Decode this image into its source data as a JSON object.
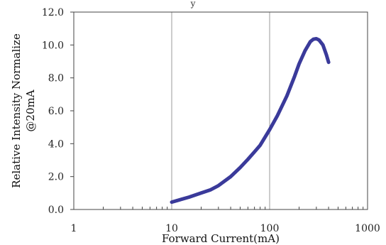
{
  "chart_data": {
    "type": "line",
    "title": "",
    "top_fragment": "y",
    "xlabel": "Forward Current(mA)",
    "ylabel_lines": [
      "Relative Intensity Normalize",
      "@20mA"
    ],
    "x_scale": "log",
    "xlim": [
      1,
      1000
    ],
    "ylim": [
      0,
      12
    ],
    "x_ticks": [
      {
        "value": 1,
        "label": "1"
      },
      {
        "value": 10,
        "label": "10"
      },
      {
        "value": 100,
        "label": "100"
      },
      {
        "value": 1000,
        "label": "1000"
      }
    ],
    "y_ticks": [
      {
        "value": 0,
        "label": "0.0"
      },
      {
        "value": 2,
        "label": "2.0"
      },
      {
        "value": 4,
        "label": "4.0"
      },
      {
        "value": 6,
        "label": "6.0"
      },
      {
        "value": 8,
        "label": "8.0"
      },
      {
        "value": 10,
        "label": "10.0"
      },
      {
        "value": 12,
        "label": "12.0"
      }
    ],
    "grid": {
      "vertical_major": true,
      "horizontal": false
    },
    "line_color": "#3a3a9a",
    "series": [
      {
        "x": [
          10,
          15,
          20,
          25,
          30,
          40,
          50,
          60,
          70,
          80,
          100,
          120,
          150,
          180,
          200,
          230,
          260,
          280,
          300,
          320,
          350,
          380,
          400
        ],
        "values": [
          0.45,
          0.75,
          1.0,
          1.2,
          1.45,
          2.0,
          2.55,
          3.05,
          3.5,
          3.9,
          4.85,
          5.7,
          6.9,
          8.1,
          8.85,
          9.65,
          10.2,
          10.35,
          10.38,
          10.3,
          10.0,
          9.4,
          8.95
        ]
      }
    ]
  }
}
